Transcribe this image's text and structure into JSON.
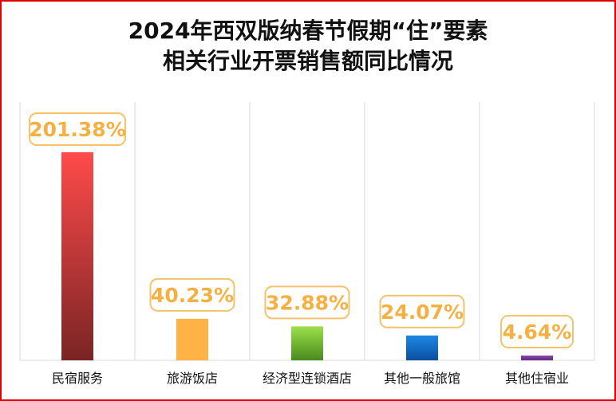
{
  "chart_data": {
    "type": "bar",
    "title_lines": [
      "2024年西双版纳春节假期“住”要素",
      "相关行业开票销售额同比情况"
    ],
    "categories": [
      "民宿服务",
      "旅游饭店",
      "经济型连锁酒店",
      "其他一般旅馆",
      "其他住宿业"
    ],
    "values": [
      201.38,
      40.23,
      32.88,
      24.07,
      4.64
    ],
    "data_labels": [
      "201.38%",
      "40.23%",
      "32.88%",
      "24.07%",
      "4.64%"
    ],
    "value_unit": "%",
    "ylim": [
      0,
      201.38
    ],
    "grid": "vertical separators between categories",
    "legend": "none",
    "colors": {
      "bars": [
        [
          "#ff4a4a",
          "#7a2424"
        ],
        [
          "#ffb347",
          "#ffb347"
        ],
        [
          "#9be04a",
          "#4a8a1e"
        ],
        [
          "#1e88e5",
          "#0a4fa0"
        ],
        [
          "#8e44ad",
          "#5b2c83"
        ]
      ],
      "label_text": "#f5b041",
      "label_border": "#f5c26b",
      "frame": "#e00000"
    }
  }
}
